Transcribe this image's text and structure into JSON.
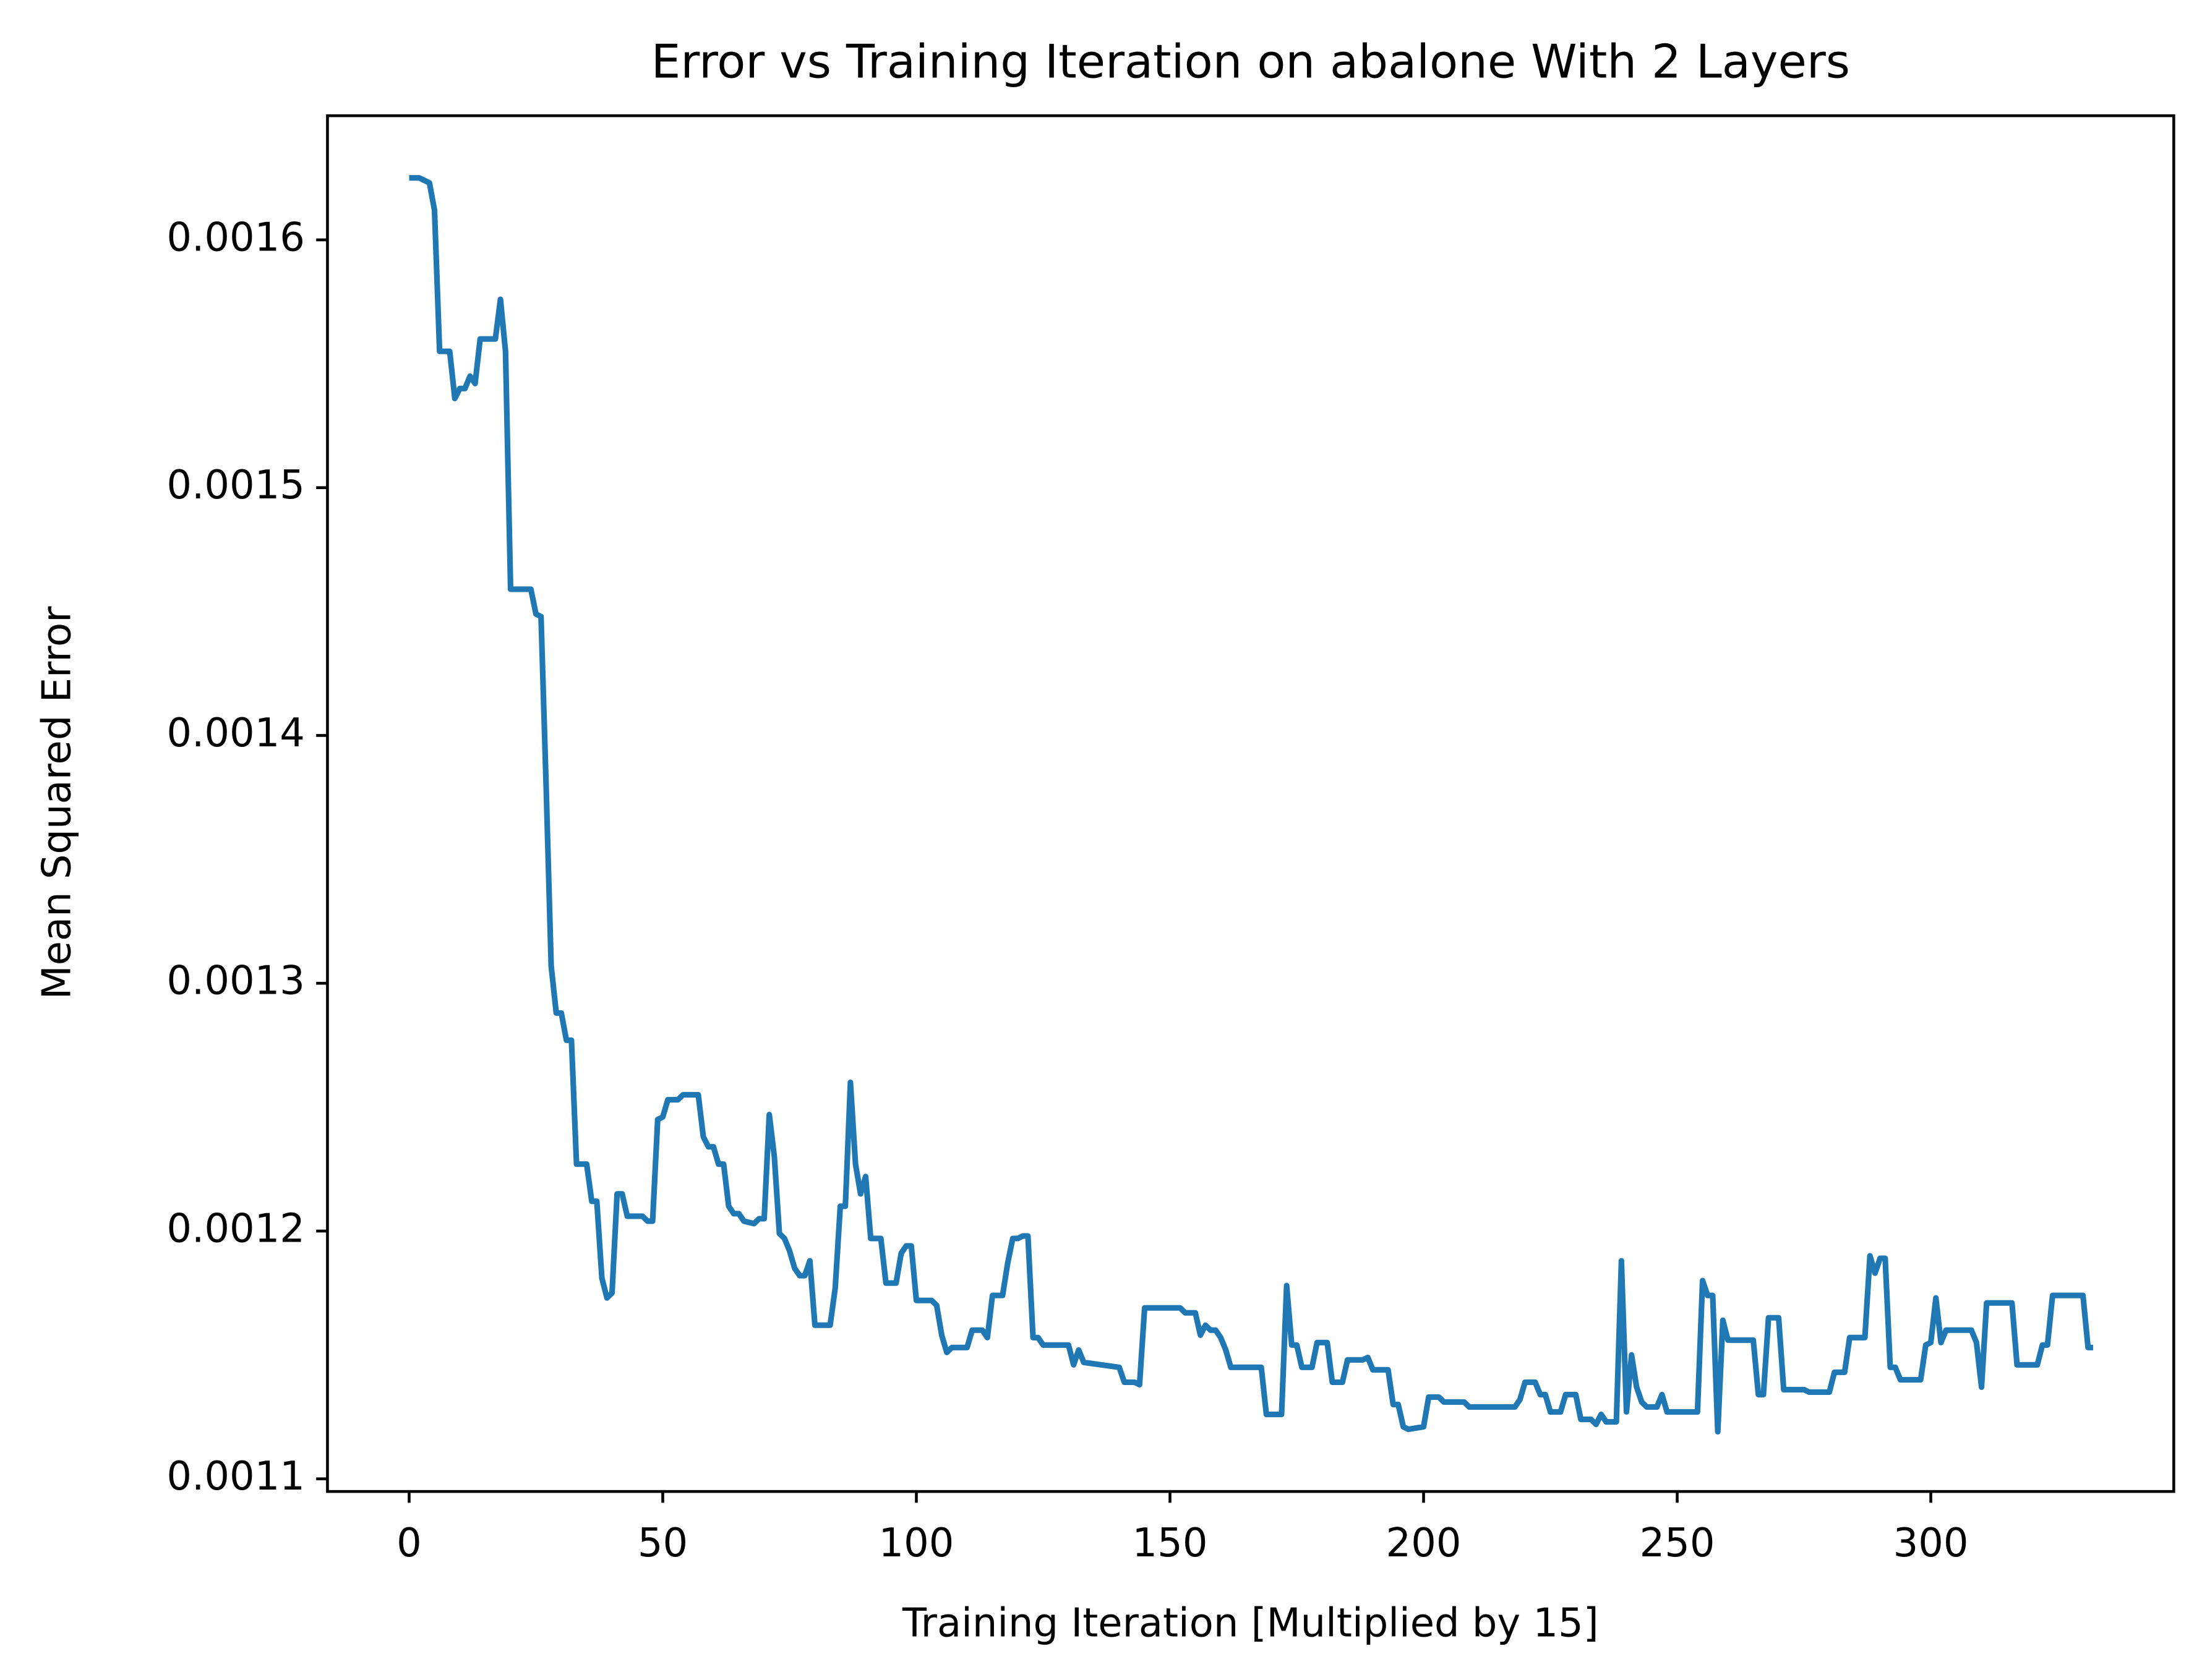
{
  "chart_data": {
    "type": "line",
    "title": "Error vs Training Iteration on abalone With 2 Layers",
    "xlabel": "Training Iteration [Multiplied by 15]",
    "ylabel": "Mean Squared Error",
    "x": [
      0,
      2,
      3,
      4,
      5,
      6,
      8,
      9,
      10,
      11,
      12,
      13,
      14,
      17,
      18,
      19,
      20,
      24,
      25,
      26,
      27,
      28,
      29,
      30,
      31,
      32,
      33,
      35,
      36,
      37,
      38,
      39,
      40,
      41,
      42,
      43,
      46,
      47,
      48,
      49,
      50,
      51,
      53,
      54,
      57,
      58,
      59,
      60,
      61,
      62,
      63,
      64,
      65,
      66,
      68,
      69,
      70,
      71,
      72,
      73,
      74,
      75,
      76,
      77,
      78,
      79,
      80,
      83,
      84,
      85,
      86,
      87,
      88,
      89,
      90,
      91,
      93,
      94,
      96,
      97,
      98,
      99,
      100,
      103,
      104,
      105,
      106,
      107,
      110,
      111,
      113,
      114,
      115,
      117,
      118,
      119,
      120,
      121,
      122,
      123,
      124,
      125,
      130,
      131,
      132,
      133,
      140,
      141,
      143,
      144,
      145,
      152,
      153,
      155,
      156,
      157,
      158,
      159,
      160,
      161,
      162,
      168,
      169,
      172,
      173,
      174,
      175,
      176,
      178,
      179,
      181,
      182,
      184,
      185,
      188,
      189,
      190,
      193,
      194,
      195,
      196,
      197,
      200,
      201,
      203,
      204,
      208,
      209,
      218,
      219,
      220,
      222,
      223,
      224,
      225,
      227,
      228,
      230,
      231,
      233,
      234,
      235,
      236,
      238,
      239,
      240,
      241,
      242,
      243,
      244,
      246,
      247,
      248,
      254,
      255,
      256,
      257,
      258,
      259,
      260,
      265,
      266,
      267,
      268,
      270,
      271,
      275,
      276,
      280,
      281,
      283,
      284,
      287,
      288,
      289,
      290,
      291,
      292,
      293,
      294,
      298,
      299,
      300,
      301,
      302,
      303,
      308,
      309,
      310,
      311,
      316,
      317,
      321,
      322,
      323,
      324,
      330,
      331,
      332
    ],
    "series": [
      {
        "name": "Mean Squared Error",
        "color": "#1f77b4",
        "values": [
          0.001625,
          0.001625,
          0.001624,
          0.001623,
          0.001612,
          0.001555,
          0.001555,
          0.001536,
          0.00154,
          0.00154,
          0.001545,
          0.001542,
          0.00156,
          0.00156,
          0.001576,
          0.001555,
          0.001459,
          0.001459,
          0.001449,
          0.001448,
          0.00138,
          0.001307,
          0.001288,
          0.001288,
          0.001277,
          0.001277,
          0.001227,
          0.001227,
          0.001212,
          0.001212,
          0.001181,
          0.001173,
          0.001175,
          0.001215,
          0.001215,
          0.001206,
          0.001206,
          0.001204,
          0.001204,
          0.001245,
          0.001246,
          0.001253,
          0.001253,
          0.001255,
          0.001255,
          0.001238,
          0.001234,
          0.001234,
          0.001227,
          0.001227,
          0.00121,
          0.001207,
          0.001207,
          0.001204,
          0.001203,
          0.001205,
          0.001205,
          0.001247,
          0.00123,
          0.001199,
          0.001197,
          0.001192,
          0.001185,
          0.001182,
          0.001182,
          0.001188,
          0.001162,
          0.001162,
          0.001177,
          0.00121,
          0.00121,
          0.00126,
          0.001227,
          0.001215,
          0.001222,
          0.001197,
          0.001197,
          0.001179,
          0.001179,
          0.001191,
          0.001194,
          0.001194,
          0.001172,
          0.001172,
          0.00117,
          0.001158,
          0.001151,
          0.001153,
          0.001153,
          0.00116,
          0.00116,
          0.001157,
          0.001174,
          0.001174,
          0.001187,
          0.001197,
          0.001197,
          0.001198,
          0.001198,
          0.001157,
          0.001157,
          0.001154,
          0.001154,
          0.001146,
          0.001152,
          0.001147,
          0.001145,
          0.001139,
          0.001139,
          0.001138,
          0.001169,
          0.001169,
          0.001167,
          0.001167,
          0.001158,
          0.001162,
          0.00116,
          0.00116,
          0.001157,
          0.001152,
          0.001145,
          0.001145,
          0.001126,
          0.001126,
          0.001178,
          0.001154,
          0.001154,
          0.001145,
          0.001145,
          0.001155,
          0.001155,
          0.001139,
          0.001139,
          0.001148,
          0.001148,
          0.001149,
          0.001144,
          0.001144,
          0.00113,
          0.00113,
          0.001121,
          0.00112,
          0.001121,
          0.001133,
          0.001133,
          0.001131,
          0.001131,
          0.001129,
          0.001129,
          0.001132,
          0.001139,
          0.001139,
          0.001134,
          0.001134,
          0.001127,
          0.001127,
          0.001134,
          0.001134,
          0.001124,
          0.001124,
          0.001122,
          0.001126,
          0.001123,
          0.001123,
          0.001188,
          0.001127,
          0.00115,
          0.001137,
          0.001131,
          0.001129,
          0.001129,
          0.001134,
          0.001127,
          0.001127,
          0.00118,
          0.001174,
          0.001174,
          0.001119,
          0.001164,
          0.001156,
          0.001156,
          0.001134,
          0.001134,
          0.001165,
          0.001165,
          0.001136,
          0.001136,
          0.001135,
          0.001135,
          0.001143,
          0.001143,
          0.001157,
          0.001157,
          0.00119,
          0.001183,
          0.001189,
          0.001189,
          0.001145,
          0.001145,
          0.00114,
          0.00114,
          0.001154,
          0.001155,
          0.001173,
          0.001155,
          0.00116,
          0.00116,
          0.001155,
          0.001137,
          0.001171,
          0.001171,
          0.001146,
          0.001146,
          0.001154,
          0.001154,
          0.001174,
          0.001174,
          0.001153,
          0.001153
        ]
      }
    ],
    "xlim": [
      -16.1,
      347.9
    ],
    "ylim": [
      0.0010949,
      0.0016501
    ],
    "xticks": [
      0,
      50,
      100,
      150,
      200,
      250,
      300
    ],
    "yticks": [
      0.0011,
      0.0012,
      0.0013,
      0.0014,
      0.0015,
      0.0016
    ],
    "grid": false
  }
}
